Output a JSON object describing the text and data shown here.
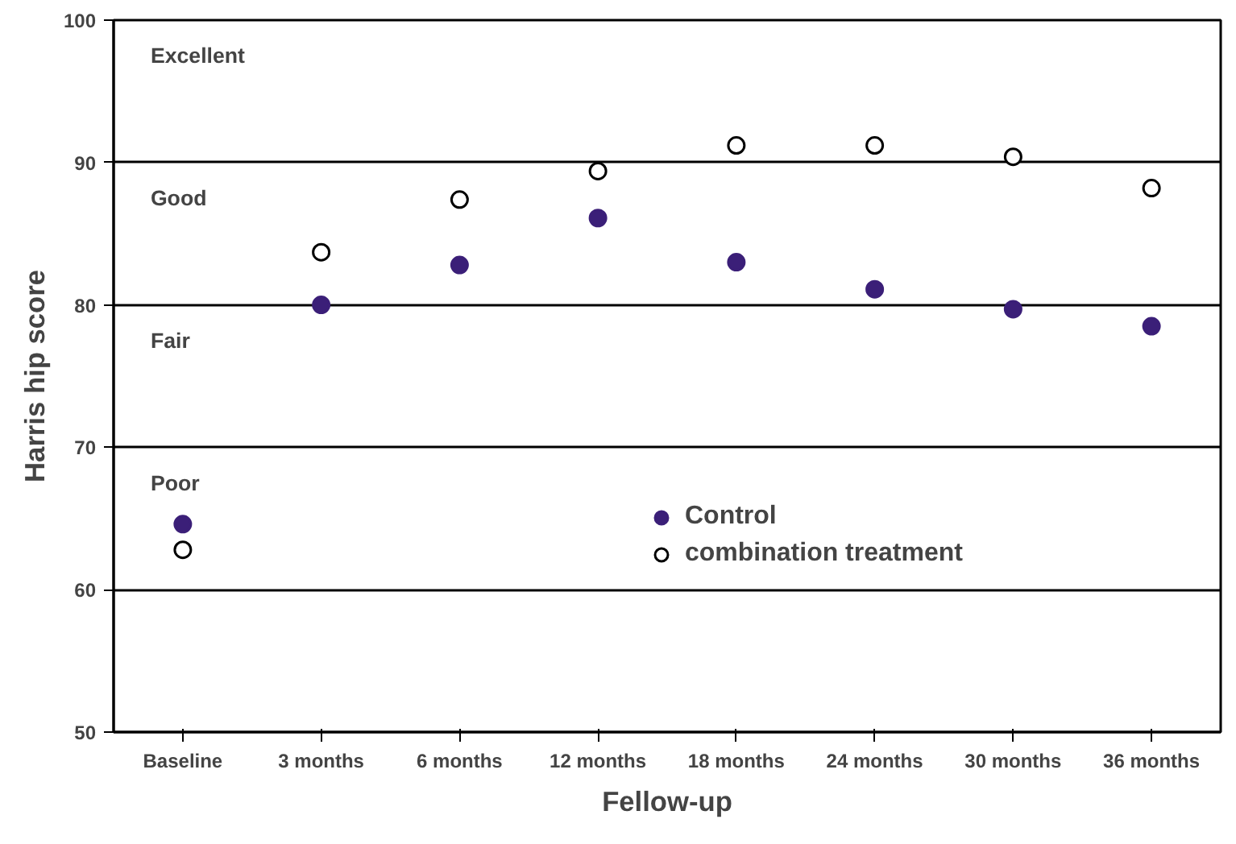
{
  "chart_data": {
    "type": "scatter",
    "xlabel": "Fellow-up",
    "ylabel": "Harris hip score",
    "categories": [
      "Baseline",
      "3 months",
      "6 months",
      "12 months",
      "18 months",
      "24 months",
      "30 months",
      "36 months"
    ],
    "series": [
      {
        "name": "Control",
        "color": "#3b1f78",
        "values": [
          64.6,
          80.0,
          82.8,
          86.1,
          83.0,
          81.1,
          79.7,
          78.5
        ]
      },
      {
        "name": "combination treatment",
        "color": "#000000",
        "marker": "circle_open",
        "values": [
          62.8,
          83.7,
          87.4,
          89.4,
          91.2,
          91.2,
          90.4,
          88.2
        ]
      }
    ],
    "ylim": [
      50,
      100
    ],
    "yticks": [
      50,
      60,
      70,
      80,
      90,
      100
    ],
    "grid": "y",
    "legend": "bottom",
    "marker": "circle",
    "annotations": [
      "Excellent",
      "Good",
      "Fair",
      "Poor"
    ]
  }
}
